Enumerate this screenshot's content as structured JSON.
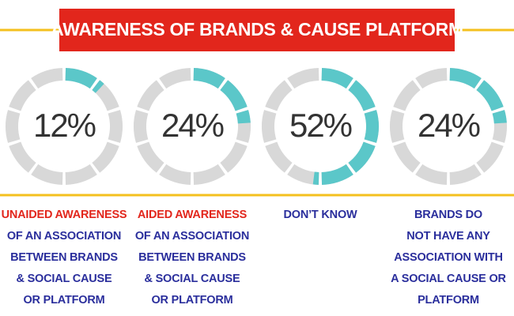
{
  "title": "AWARENESS OF BRANDS & CAUSE PLATFORM",
  "chart_data": [
    {
      "type": "donut",
      "values": [
        12
      ],
      "value_labels": [
        "12%"
      ],
      "color": "#5bc7c9",
      "track_color": "#d8d8d8",
      "caption_highlight": "UNAIDED AWARENESS",
      "caption_lines": [
        "OF AN ASSOCIATION",
        "BETWEEN BRANDS",
        "& SOCIAL CAUSE",
        "OR PLATFORM"
      ]
    },
    {
      "type": "donut",
      "values": [
        24
      ],
      "value_labels": [
        "24%"
      ],
      "color": "#5bc7c9",
      "track_color": "#d8d8d8",
      "caption_highlight": "AIDED AWARENESS",
      "caption_lines": [
        "OF AN ASSOCIATION",
        "BETWEEN BRANDS",
        "& SOCIAL CAUSE",
        "OR PLATFORM"
      ]
    },
    {
      "type": "donut",
      "values": [
        52
      ],
      "value_labels": [
        "52%"
      ],
      "color": "#5bc7c9",
      "track_color": "#d8d8d8",
      "caption_lines": [
        "DON’T KNOW"
      ]
    },
    {
      "type": "donut",
      "values": [
        24
      ],
      "value_labels": [
        "24%"
      ],
      "color": "#5bc7c9",
      "track_color": "#d8d8d8",
      "caption_lines": [
        "BRANDS DO",
        "NOT HAVE ANY",
        "ASSOCIATION WITH",
        "A SOCIAL CAUSE OR",
        "PLATFORM"
      ]
    }
  ]
}
